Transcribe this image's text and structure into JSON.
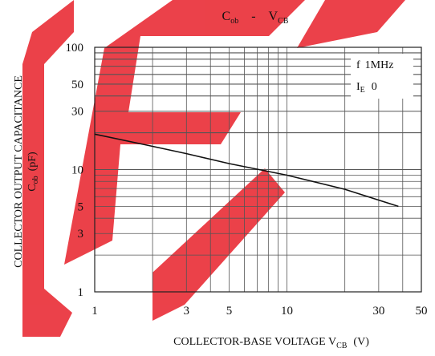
{
  "chart_data": {
    "type": "line",
    "title": {
      "main": "C",
      "main_sub": "ob",
      "sep": "-",
      "var": "V",
      "var_sub": "CB"
    },
    "xlabel": {
      "text": "COLLECTOR-BASE VOLTAGE V",
      "sub": "CB",
      "unit": "(V)"
    },
    "ylabel": {
      "line1": "COLLECTOR OUTPUT CAPACITANCE",
      "line2_main": "C",
      "line2_sub": "ob",
      "line2_unit": "(pF)"
    },
    "x_scale": "log",
    "y_scale": "log",
    "xlim": [
      1,
      50
    ],
    "ylim": [
      1,
      100
    ],
    "x_ticks": [
      {
        "value": 1,
        "label": "1"
      },
      {
        "value": 3,
        "label": "3"
      },
      {
        "value": 5,
        "label": "5"
      },
      {
        "value": 10,
        "label": "10"
      },
      {
        "value": 30,
        "label": "30"
      },
      {
        "value": 50,
        "label": "50"
      }
    ],
    "y_ticks": [
      {
        "value": 1,
        "label": "1"
      },
      {
        "value": 3,
        "label": "3"
      },
      {
        "value": 5,
        "label": "5"
      },
      {
        "value": 10,
        "label": "10"
      },
      {
        "value": 30,
        "label": "30"
      },
      {
        "value": 50,
        "label": "50"
      },
      {
        "value": 100,
        "label": "100"
      }
    ],
    "grid": true,
    "conditions": [
      {
        "main": "f",
        "sub": "",
        "value": "1MHz"
      },
      {
        "main": "I",
        "sub": "E",
        "value": "0"
      }
    ],
    "series": [
      {
        "x": [
          1,
          2,
          3,
          5,
          10,
          20,
          38
        ],
        "y": [
          19.5,
          15.5,
          13.5,
          11.2,
          9.0,
          6.9,
          5.0
        ]
      }
    ],
    "watermark": "IEC",
    "colors": {
      "line": "#111111",
      "grid": "#555555",
      "watermark": "#e8202a"
    }
  }
}
